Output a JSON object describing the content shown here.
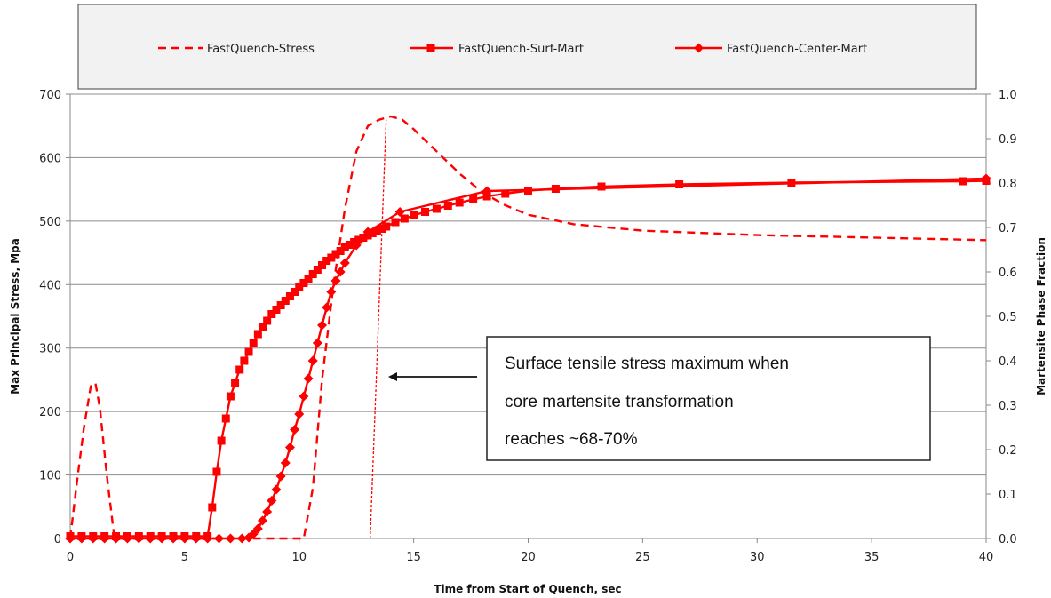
{
  "chart_data": {
    "type": "line",
    "title": "",
    "xlabel": "Time from Start of Quench, sec",
    "ylabel": "Max Principal Stress, Mpa",
    "y2label": "Martensite Phase Fraction",
    "xlim": [
      0,
      40
    ],
    "ylim": [
      0,
      700
    ],
    "y2lim": [
      0,
      1.0
    ],
    "x_ticks": [
      "0",
      "5",
      "10",
      "15",
      "20",
      "25",
      "30",
      "35",
      "40"
    ],
    "y_ticks": [
      "0",
      "100",
      "200",
      "300",
      "400",
      "500",
      "600",
      "700"
    ],
    "y2_ticks": [
      "0.0",
      "0.1",
      "0.2",
      "0.3",
      "0.4",
      "0.5",
      "0.6",
      "0.7",
      "0.8",
      "0.9",
      "1.0"
    ],
    "grid": "horizontal",
    "legend_position": "top",
    "series": [
      {
        "name": "FastQuench-Stress",
        "axis": "left",
        "style": "dashed",
        "marker": "none",
        "color": "#ff0000",
        "x": [
          0,
          0.3,
          0.6,
          0.9,
          1.1,
          1.3,
          1.6,
          1.9,
          2.0,
          3,
          5,
          7,
          9,
          10.2,
          10.6,
          11.0,
          11.5,
          12.0,
          12.5,
          13.0,
          13.5,
          14.0,
          14.5,
          15.0,
          16.0,
          17.0,
          18.0,
          19.0,
          20.0,
          22.0,
          25.0,
          30.0,
          35.0,
          40.0
        ],
        "y": [
          0,
          90,
          175,
          240,
          245,
          205,
          100,
          10,
          0,
          0,
          0,
          0,
          0,
          0,
          80,
          250,
          400,
          520,
          610,
          650,
          660,
          665,
          660,
          645,
          610,
          575,
          545,
          525,
          510,
          495,
          485,
          478,
          474,
          470
        ]
      },
      {
        "name": "FastQuench-Surf-Mart",
        "axis": "right",
        "style": "solid",
        "marker": "square",
        "color": "#ff0000",
        "x": [
          0,
          0.5,
          1,
          1.5,
          2,
          2.5,
          3,
          3.5,
          4,
          4.5,
          5,
          5.5,
          6.0,
          6.2,
          6.4,
          6.6,
          6.8,
          7.0,
          7.2,
          7.4,
          7.6,
          7.8,
          8.0,
          8.2,
          8.4,
          8.6,
          8.8,
          9.0,
          9.2,
          9.4,
          9.6,
          9.8,
          10.0,
          10.2,
          10.4,
          10.6,
          10.8,
          11.0,
          11.2,
          11.4,
          11.6,
          11.8,
          12.0,
          12.2,
          12.4,
          12.6,
          12.8,
          13.0,
          13.2,
          13.4,
          13.6,
          13.8,
          14.2,
          14.6,
          15.0,
          15.5,
          16.0,
          16.5,
          17.0,
          17.6,
          18.2,
          19.0,
          20.0,
          21.2,
          23.2,
          26.6,
          31.5,
          39.0,
          40.0
        ],
        "y": [
          0.005,
          0.005,
          0.005,
          0.005,
          0.005,
          0.005,
          0.005,
          0.005,
          0.005,
          0.005,
          0.005,
          0.005,
          0.005,
          0.07,
          0.15,
          0.22,
          0.27,
          0.32,
          0.35,
          0.38,
          0.4,
          0.42,
          0.44,
          0.46,
          0.475,
          0.49,
          0.505,
          0.515,
          0.525,
          0.535,
          0.545,
          0.555,
          0.565,
          0.575,
          0.585,
          0.595,
          0.605,
          0.615,
          0.625,
          0.632,
          0.64,
          0.647,
          0.655,
          0.661,
          0.667,
          0.672,
          0.677,
          0.682,
          0.687,
          0.692,
          0.697,
          0.702,
          0.712,
          0.72,
          0.727,
          0.735,
          0.742,
          0.749,
          0.756,
          0.763,
          0.77,
          0.776,
          0.783,
          0.787,
          0.792,
          0.797,
          0.801,
          0.804,
          0.805
        ]
      },
      {
        "name": "FastQuench-Center-Mart",
        "axis": "right",
        "style": "solid",
        "marker": "diamond",
        "color": "#ff0000",
        "x": [
          0,
          0.5,
          1,
          1.5,
          2,
          2.5,
          3,
          3.5,
          4,
          4.5,
          5,
          5.5,
          6,
          6.5,
          7,
          7.5,
          7.8,
          8.0,
          8.2,
          8.4,
          8.6,
          8.8,
          9.0,
          9.2,
          9.4,
          9.6,
          9.8,
          10.0,
          10.2,
          10.4,
          10.6,
          10.8,
          11.0,
          11.2,
          11.4,
          11.6,
          11.8,
          12.0,
          12.5,
          13.0,
          14.4,
          18.2,
          40.0
        ],
        "y": [
          0.0,
          0.0,
          0.0,
          0.0,
          0.0,
          0.0,
          0.0,
          0.0,
          0.0,
          0.0,
          0.0,
          0.0,
          0.0,
          0.0,
          0.0,
          0.0,
          0.002,
          0.01,
          0.022,
          0.04,
          0.06,
          0.085,
          0.11,
          0.14,
          0.17,
          0.205,
          0.245,
          0.28,
          0.32,
          0.36,
          0.4,
          0.44,
          0.48,
          0.52,
          0.555,
          0.58,
          0.6,
          0.62,
          0.66,
          0.69,
          0.735,
          0.782,
          0.81
        ]
      }
    ],
    "annotations": [
      {
        "text_lines": [
          "Surface tensile stress maximum when",
          "core martensite transformation",
          "reaches ~68-70%"
        ],
        "box": "boxed",
        "arrow": "left",
        "reference_line_x_from": 13.1,
        "reference_line_x_to": 13.8,
        "reference_line_y_to": 660
      }
    ]
  }
}
